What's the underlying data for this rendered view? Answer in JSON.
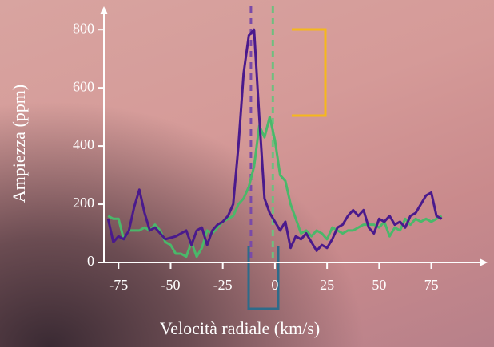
{
  "chart_data": {
    "type": "line",
    "x_label": "Velocità radiale (km/s)",
    "y_label": "Ampiezza (ppm)",
    "x": [
      -80,
      -77.5,
      -75,
      -72.5,
      -70,
      -67.5,
      -65,
      -62.5,
      -60,
      -57.5,
      -55,
      -52.5,
      -50,
      -47.5,
      -45,
      -42.5,
      -40,
      -37.5,
      -35,
      -32.5,
      -30,
      -27.5,
      -25,
      -22.5,
      -20,
      -17.5,
      -15,
      -12.5,
      -10,
      -7.5,
      -5,
      -2.5,
      0,
      2.5,
      5,
      7.5,
      10,
      12.5,
      15,
      17.5,
      20,
      22.5,
      25,
      27.5,
      30,
      32.5,
      35,
      37.5,
      40,
      42.5,
      45,
      47.5,
      50,
      52.5,
      55,
      57.5,
      60,
      62.5,
      65,
      67.5,
      70,
      72.5,
      75,
      77.5,
      80
    ],
    "series": [
      {
        "color": "#4ab86a",
        "values": [
          160,
          150,
          150,
          80,
          110,
          110,
          110,
          120,
          110,
          130,
          110,
          70,
          60,
          30,
          30,
          20,
          70,
          20,
          50,
          110,
          100,
          120,
          140,
          150,
          160,
          200,
          220,
          260,
          330,
          470,
          430,
          500,
          420,
          300,
          280,
          200,
          150,
          100,
          110,
          90,
          110,
          100,
          80,
          120,
          110,
          100,
          110,
          110,
          120,
          130,
          130,
          130,
          120,
          140,
          90,
          120,
          110,
          150,
          130,
          150,
          140,
          150,
          140,
          150,
          160
        ]
      },
      {
        "color": "#4a1a8c",
        "values": [
          150,
          70,
          90,
          80,
          110,
          190,
          250,
          170,
          110,
          120,
          100,
          80,
          85,
          90,
          100,
          110,
          60,
          110,
          120,
          60,
          110,
          130,
          140,
          160,
          200,
          400,
          650,
          780,
          800,
          500,
          220,
          170,
          140,
          110,
          140,
          50,
          90,
          80,
          100,
          70,
          40,
          60,
          50,
          80,
          120,
          130,
          160,
          180,
          160,
          180,
          120,
          100,
          150,
          140,
          160,
          130,
          140,
          120,
          160,
          170,
          200,
          230,
          240,
          160,
          150
        ]
      }
    ],
    "markers": [
      {
        "value": -11.5,
        "color": "#7a4aa8"
      },
      {
        "value": -1,
        "color": "#6fbf7f"
      }
    ],
    "xlim": [
      -82,
      102
    ],
    "ylim": [
      0,
      880
    ],
    "xticks": [
      -75,
      -50,
      -25,
      0,
      25,
      50,
      75
    ],
    "yticks": [
      0,
      200,
      400,
      600,
      800
    ]
  }
}
